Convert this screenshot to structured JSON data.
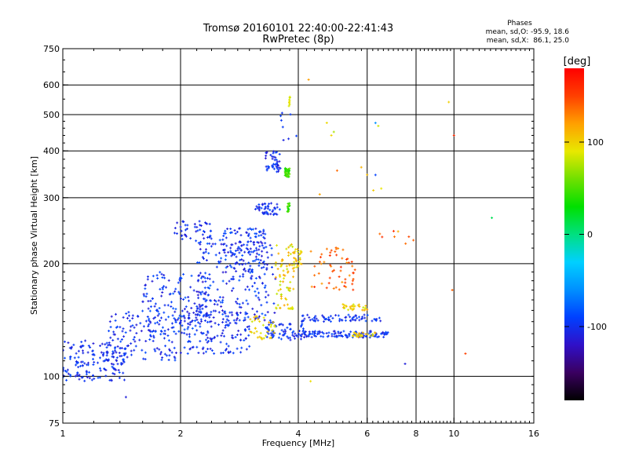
{
  "chart_data": {
    "type": "scatter",
    "title": "Tromsø 20160101 22:40:00-22:41:43",
    "subtitle": "RwPretec (8p)",
    "xlabel": "Frequency [MHz]",
    "ylabel": "Stationary phase Virtual Height [km]",
    "x_scale": "log",
    "y_scale": "log",
    "xlim": [
      1,
      16
    ],
    "ylim": [
      75,
      750
    ],
    "x_ticks": [
      1,
      2,
      4,
      6,
      8,
      10,
      16
    ],
    "x_ticks_labels": [
      "1",
      "2",
      "4",
      "6",
      "8",
      "10",
      "16"
    ],
    "y_ticks": [
      75,
      100,
      200,
      300,
      400,
      500,
      600,
      750
    ],
    "y_ticks_labels": [
      "75",
      "100",
      "200",
      "300",
      "400",
      "500",
      "600",
      "750"
    ],
    "x_gridlines": [
      2,
      4,
      6,
      8,
      10
    ],
    "y_gridlines": [
      100,
      200,
      300,
      400,
      500,
      600
    ],
    "grid": true,
    "stats": {
      "heading": "Phases",
      "line1": "mean, sd,O: -95.9, 18.6",
      "line2": "mean, sd,X:  86.1, 25.0"
    },
    "colorbar": {
      "label": "[deg]",
      "range": [
        -180,
        180
      ],
      "ticks": [
        100,
        0,
        -100
      ],
      "ticks_labels": [
        "100",
        "0",
        "-100"
      ],
      "colormap": "rainbow (black-purple-blue-cyan-green-yellow-orange-red)",
      "colormap_stops": [
        "#000000",
        "#3a0060",
        "#3010c8",
        "#0040ff",
        "#0090ff",
        "#00d0ff",
        "#00e080",
        "#00e000",
        "#70e000",
        "#e8e800",
        "#ffa000",
        "#ff4000",
        "#ff0000"
      ]
    },
    "clusters": [
      {
        "x": [
          1.0,
          1.45
        ],
        "y": [
          97,
          125
        ],
        "phase": [
          -115,
          -85
        ],
        "n": 160
      },
      {
        "x": [
          1.3,
          2.0
        ],
        "y": [
          110,
          150
        ],
        "phase": [
          -115,
          -85
        ],
        "n": 130
      },
      {
        "x": [
          1.6,
          2.4
        ],
        "y": [
          130,
          190
        ],
        "phase": [
          -115,
          -80
        ],
        "n": 150
      },
      {
        "x": [
          2.0,
          3.0
        ],
        "y": [
          115,
          150
        ],
        "phase": [
          -115,
          -85
        ],
        "n": 140
      },
      {
        "x": [
          2.2,
          3.5
        ],
        "y": [
          140,
          230
        ],
        "phase": [
          -120,
          -80
        ],
        "n": 210
      },
      {
        "x": [
          1.9,
          2.4
        ],
        "y": [
          230,
          260
        ],
        "phase": [
          -115,
          -90
        ],
        "n": 45
      },
      {
        "x": [
          2.5,
          3.3
        ],
        "y": [
          190,
          250
        ],
        "phase": [
          -115,
          -80
        ],
        "n": 110
      },
      {
        "x": [
          3.1,
          3.6
        ],
        "y": [
          270,
          290
        ],
        "phase": [
          -115,
          -85
        ],
        "n": 45
      },
      {
        "x": [
          3.3,
          3.6
        ],
        "y": [
          350,
          400
        ],
        "phase": [
          -115,
          -85
        ],
        "n": 45
      },
      {
        "x": [
          3.5,
          4.0
        ],
        "y": [
          420,
          510
        ],
        "phase": [
          -110,
          -90
        ],
        "n": 8
      },
      {
        "x": [
          3.3,
          4.2
        ],
        "y": [
          125,
          140
        ],
        "phase": [
          -115,
          -85
        ],
        "n": 70
      },
      {
        "x": [
          3.9,
          6.8
        ],
        "y": [
          127,
          132
        ],
        "phase": [
          -115,
          -85
        ],
        "n": 120
      },
      {
        "x": [
          4.0,
          6.5
        ],
        "y": [
          140,
          146
        ],
        "phase": [
          -110,
          -85
        ],
        "n": 70
      },
      {
        "x": [
          3.5,
          3.9
        ],
        "y": [
          150,
          230
        ],
        "phase": [
          75,
          120
        ],
        "n": 70
      },
      {
        "x": [
          3.7,
          3.8
        ],
        "y": [
          340,
          360
        ],
        "phase": [
          30,
          60
        ],
        "n": 40
      },
      {
        "x": [
          3.75,
          3.8
        ],
        "y": [
          275,
          290
        ],
        "phase": [
          30,
          60
        ],
        "n": 14
      },
      {
        "x": [
          3.78,
          3.82
        ],
        "y": [
          520,
          560
        ],
        "phase": [
          80,
          110
        ],
        "n": 8
      },
      {
        "x": [
          3.9,
          4.1
        ],
        "y": [
          195,
          220
        ],
        "phase": [
          80,
          120
        ],
        "n": 25
      },
      {
        "x": [
          3.0,
          3.5
        ],
        "y": [
          125,
          145
        ],
        "phase": [
          80,
          120
        ],
        "n": 35
      },
      {
        "x": [
          4.3,
          5.6
        ],
        "y": [
          170,
          225
        ],
        "phase": [
          120,
          160
        ],
        "n": 55
      },
      {
        "x": [
          5.2,
          6.0
        ],
        "y": [
          150,
          156
        ],
        "phase": [
          80,
          120
        ],
        "n": 30
      },
      {
        "x": [
          5.5,
          6.3
        ],
        "y": [
          127,
          131
        ],
        "phase": [
          80,
          120
        ],
        "n": 25
      },
      {
        "x": [
          4.5,
          7.0
        ],
        "y": [
          300,
          480
        ],
        "phase": [
          60,
          140
        ],
        "n": 10
      },
      {
        "x": [
          5.5,
          8.5
        ],
        "y": [
          225,
          245
        ],
        "phase": [
          110,
          160
        ],
        "n": 8
      }
    ],
    "isolated_points": [
      {
        "x": 1.45,
        "y": 88,
        "phase": -110
      },
      {
        "x": 10.7,
        "y": 115,
        "phase": 150
      },
      {
        "x": 9.9,
        "y": 170,
        "phase": 140
      },
      {
        "x": 12.5,
        "y": 265,
        "phase": 10
      },
      {
        "x": 9.7,
        "y": 540,
        "phase": 100
      },
      {
        "x": 10.0,
        "y": 440,
        "phase": 160
      },
      {
        "x": 6.3,
        "y": 345,
        "phase": -90
      },
      {
        "x": 4.3,
        "y": 97,
        "phase": 95
      },
      {
        "x": 7.5,
        "y": 108,
        "phase": -110
      },
      {
        "x": 6.3,
        "y": 475,
        "phase": -60
      },
      {
        "x": 4.25,
        "y": 620,
        "phase": 120
      }
    ]
  }
}
